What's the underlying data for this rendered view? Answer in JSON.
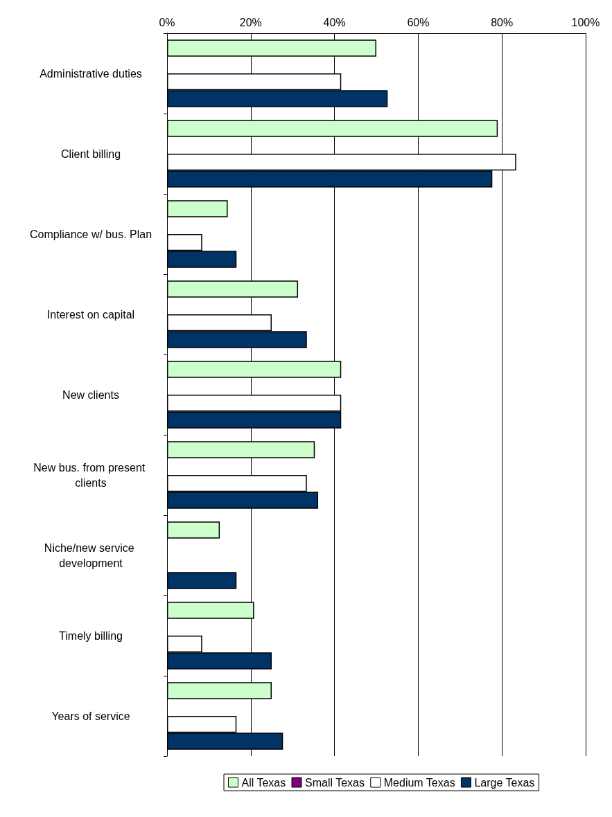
{
  "chart_data": {
    "type": "bar",
    "orientation": "horizontal",
    "categories": [
      "Administrative duties",
      "Client billing",
      "Compliance w/ bus. Plan",
      "Interest on capital",
      "New clients",
      "New bus. from present clients",
      "Niche/new service development",
      "Timely billing",
      "Years of service"
    ],
    "series": [
      {
        "name": "All Texas",
        "color": "#ccffcc",
        "values": [
          50,
          79,
          14.5,
          31.3,
          41.6,
          35.3,
          12.6,
          20.8,
          25
        ]
      },
      {
        "name": "Small Texas",
        "color": "#800080",
        "values": [
          null,
          null,
          null,
          null,
          null,
          null,
          null,
          null,
          null
        ]
      },
      {
        "name": "Medium Texas",
        "color": "#ffffff",
        "values": [
          41.6,
          83.4,
          8.4,
          25,
          41.6,
          33.4,
          null,
          8.4,
          16.6
        ]
      },
      {
        "name": "Large Texas",
        "color": "#003366",
        "values": [
          52.7,
          77.7,
          16.6,
          33.4,
          41.6,
          36.1,
          16.6,
          25,
          27.7
        ]
      }
    ],
    "xlim": [
      0,
      100
    ],
    "xticks": [
      {
        "value": 0,
        "label": "0%"
      },
      {
        "value": 20,
        "label": "20%"
      },
      {
        "value": 40,
        "label": "40%"
      },
      {
        "value": 60,
        "label": "60%"
      },
      {
        "value": 80,
        "label": "80%"
      },
      {
        "value": 100,
        "label": "100%"
      }
    ],
    "grid": "x",
    "legend": "bottom"
  }
}
